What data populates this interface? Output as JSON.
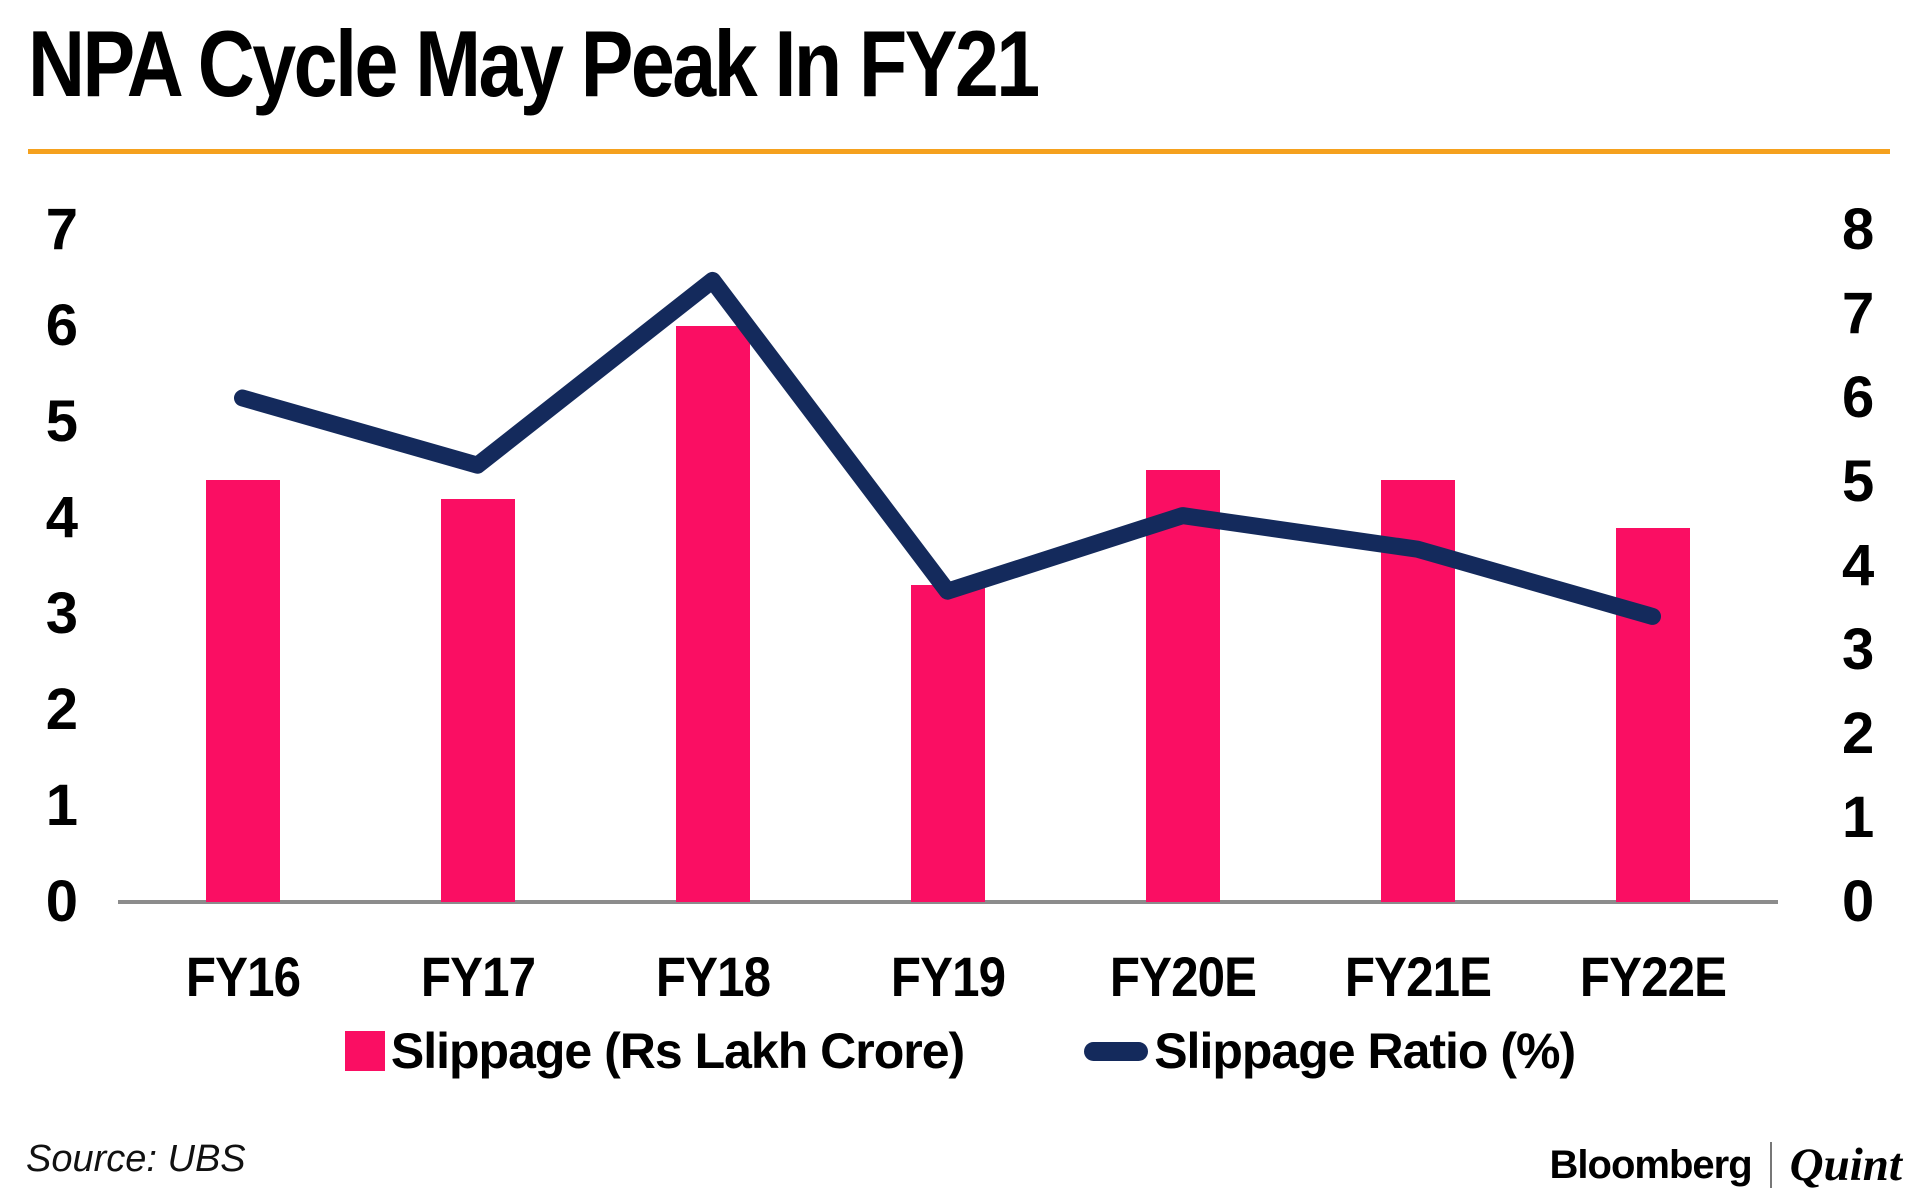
{
  "title": "NPA Cycle May Peak In FY21",
  "source_label": "Source: UBS",
  "brand": {
    "bloomberg": "Bloomberg",
    "quint": "Quint"
  },
  "colors": {
    "bar_pink": "#FA0E63",
    "line_navy": "#142A5C",
    "title_rule_orange": "#F5A11E",
    "axis_gray": "#8C8C8C",
    "text_black": "#000000"
  },
  "legend": {
    "items": [
      {
        "label": "Slippage (Rs Lakh Crore)",
        "swatch": "bar",
        "color": "#FA0E63"
      },
      {
        "label": "Slippage Ratio (%)",
        "swatch": "line",
        "color": "#142A5C"
      }
    ]
  },
  "chart_data": {
    "type": "bar",
    "subtype": "bar+line dual-axis",
    "title": "NPA Cycle May Peak In FY21",
    "categories": [
      "FY16",
      "FY17",
      "FY18",
      "FY19",
      "FY20E",
      "FY21E",
      "FY22E"
    ],
    "series": [
      {
        "name": "Slippage (Rs Lakh Crore)",
        "type": "bar",
        "axis": "left",
        "color": "#FA0E63",
        "values": [
          4.4,
          4.2,
          6.0,
          3.3,
          4.5,
          4.4,
          3.9
        ]
      },
      {
        "name": "Slippage Ratio (%)",
        "type": "line",
        "axis": "right",
        "color": "#142A5C",
        "values": [
          6.0,
          5.2,
          7.4,
          3.7,
          4.6,
          4.2,
          3.4
        ]
      }
    ],
    "left_axis": {
      "min": 0,
      "max": 7,
      "ticks": [
        0,
        1,
        2,
        3,
        4,
        5,
        6,
        7
      ],
      "label": ""
    },
    "right_axis": {
      "min": 0,
      "max": 8,
      "ticks": [
        0,
        1,
        2,
        3,
        4,
        5,
        6,
        7,
        8
      ],
      "label": ""
    },
    "grid": false,
    "legend_position": "bottom"
  }
}
